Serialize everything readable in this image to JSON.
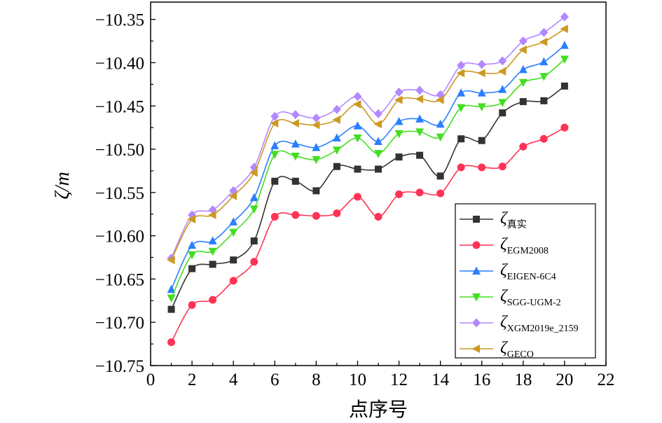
{
  "chart_data": {
    "type": "line",
    "xlabel": "点序号",
    "ylabel": "ζ/m",
    "xlim": [
      0,
      22
    ],
    "ylim": [
      -10.75,
      -10.33
    ],
    "xticks": [
      0,
      2,
      4,
      6,
      8,
      10,
      12,
      14,
      16,
      18,
      20,
      22
    ],
    "yticks": [
      -10.75,
      -10.7,
      -10.65,
      -10.6,
      -10.55,
      -10.5,
      -10.45,
      -10.4,
      -10.35
    ],
    "ytick_labels": [
      "−10.75",
      "−10.70",
      "−10.65",
      "−10.60",
      "−10.55",
      "−10.50",
      "−10.45",
      "−10.40",
      "−10.35"
    ],
    "legend_position": "bottom-right",
    "grid": false,
    "x": [
      1,
      2,
      3,
      4,
      5,
      6,
      7,
      8,
      9,
      10,
      11,
      12,
      13,
      14,
      15,
      16,
      17,
      18,
      19,
      20
    ],
    "series": [
      {
        "name": "ζ真实",
        "symbol": "ζ",
        "sub": "真实",
        "color": "#333333",
        "marker": "square",
        "values": [
          -10.685,
          -10.638,
          -10.633,
          -10.628,
          -10.606,
          -10.537,
          -10.537,
          -10.548,
          -10.52,
          -10.523,
          -10.523,
          -10.509,
          -10.507,
          -10.531,
          -10.488,
          -10.49,
          -10.458,
          -10.445,
          -10.444,
          -10.427
        ]
      },
      {
        "name": "ζEGM2008",
        "symbol": "ζ",
        "sub": "EGM2008",
        "color": "#ff3355",
        "marker": "circle",
        "values": [
          -10.723,
          -10.68,
          -10.674,
          -10.652,
          -10.63,
          -10.578,
          -10.576,
          -10.577,
          -10.574,
          -10.555,
          -10.578,
          -10.552,
          -10.55,
          -10.551,
          -10.521,
          -10.521,
          -10.52,
          -10.497,
          -10.488,
          -10.475
        ]
      },
      {
        "name": "ζEIGEN-6C4",
        "symbol": "ζ",
        "sub": "EIGEN-6C4",
        "color": "#2a7fff",
        "marker": "triangle-up",
        "values": [
          -10.662,
          -10.611,
          -10.606,
          -10.584,
          -10.556,
          -10.496,
          -10.494,
          -10.498,
          -10.487,
          -10.473,
          -10.491,
          -10.468,
          -10.465,
          -10.471,
          -10.435,
          -10.435,
          -10.431,
          -10.408,
          -10.399,
          -10.38
        ]
      },
      {
        "name": "ζSGG-UGM-2",
        "symbol": "ζ",
        "sub": "SGG-UGM-2",
        "color": "#44dd22",
        "marker": "triangle-down",
        "values": [
          -10.672,
          -10.622,
          -10.618,
          -10.596,
          -10.569,
          -10.506,
          -10.508,
          -10.512,
          -10.501,
          -10.487,
          -10.505,
          -10.482,
          -10.48,
          -10.486,
          -10.452,
          -10.451,
          -10.446,
          -10.423,
          -10.416,
          -10.396
        ]
      },
      {
        "name": "ζXGM2019e_2159",
        "symbol": "ζ",
        "sub": "XGM2019e_2159",
        "color": "#b388ff",
        "marker": "diamond",
        "values": [
          -10.626,
          -10.576,
          -10.57,
          -10.548,
          -10.521,
          -10.462,
          -10.46,
          -10.464,
          -10.454,
          -10.439,
          -10.459,
          -10.434,
          -10.432,
          -10.437,
          -10.403,
          -10.402,
          -10.398,
          -10.375,
          -10.365,
          -10.347
        ]
      },
      {
        "name": "ζGECO",
        "symbol": "ζ",
        "sub": "GECO",
        "color": "#cc9922",
        "marker": "triangle-left",
        "values": [
          -10.628,
          -10.581,
          -10.576,
          -10.554,
          -10.527,
          -10.47,
          -10.47,
          -10.472,
          -10.466,
          -10.448,
          -10.471,
          -10.443,
          -10.442,
          -10.443,
          -10.412,
          -10.412,
          -10.41,
          -10.385,
          -10.376,
          -10.361
        ]
      }
    ]
  }
}
